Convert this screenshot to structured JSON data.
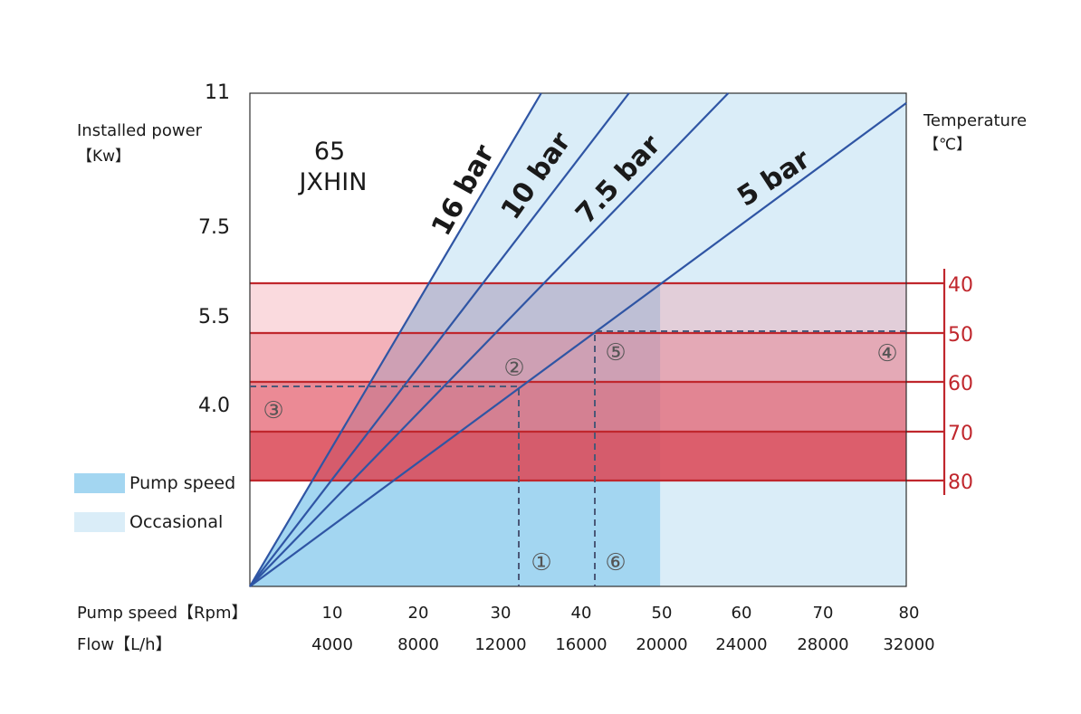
{
  "chart_data": {
    "type": "line",
    "title_model": "65",
    "title_brand": "JXHIN",
    "ylabel": "Installed power",
    "yunit": "【Kw】",
    "y_tick_labels": [
      "11",
      "7.5",
      "5.5",
      "4.0"
    ],
    "y_tick_values": [
      11,
      7.5,
      5.5,
      4.0
    ],
    "x_speed_label": "Pump speed【Rpm】",
    "x_speed_ticks": [
      "10",
      "20",
      "30",
      "40",
      "50",
      "60",
      "70",
      "80"
    ],
    "x_flow_label": "Flow【L/h】",
    "x_flow_ticks": [
      "4000",
      "8000",
      "12000",
      "16000",
      "20000",
      "24000",
      "28000",
      "32000"
    ],
    "xlim_rpm": [
      0,
      80
    ],
    "temperature_label": "Temperature",
    "temperature_unit": "【℃】",
    "temperature_ticks": [
      "40",
      "50",
      "60",
      "70",
      "80"
    ],
    "pressure_lines": [
      {
        "name": "16 bar",
        "end_rpm": 35.5,
        "end_power_frac": 1.0
      },
      {
        "name": "10 bar",
        "end_rpm": 46.2,
        "end_power_frac": 1.0
      },
      {
        "name": "7.5 bar",
        "end_rpm": 58.3,
        "end_power_frac": 1.0
      },
      {
        "name": "5 bar",
        "end_rpm": 80,
        "end_power_frac": 0.98
      }
    ],
    "regions": {
      "pump_speed_max_rpm": 50,
      "occasional_max_rpm": 80
    },
    "markers": [
      {
        "label": "①",
        "rpm": 33.5
      },
      {
        "label": "②",
        "rpm": 32.5
      },
      {
        "label": "③",
        "rpm": 3
      },
      {
        "label": "④",
        "rpm": 77
      },
      {
        "label": "⑤",
        "rpm": 44.5
      },
      {
        "label": "⑥",
        "rpm": 44.5
      }
    ],
    "legend": [
      {
        "label": "Pump speed",
        "color": "#a3d6f1"
      },
      {
        "label": "Occasional",
        "color": "#daedf8"
      }
    ],
    "colors": {
      "pump_speed": "#a3d6f1",
      "occasional": "#daedf8",
      "pressure_line": "#2f55a4",
      "temperature": "#c0272d",
      "dashed": "#4a5878"
    }
  }
}
